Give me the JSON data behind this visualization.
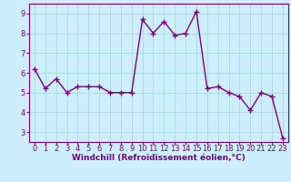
{
  "x": [
    0,
    1,
    2,
    3,
    4,
    5,
    6,
    7,
    8,
    9,
    10,
    11,
    12,
    13,
    14,
    15,
    16,
    17,
    18,
    19,
    20,
    21,
    22,
    23
  ],
  "y": [
    6.2,
    5.2,
    5.7,
    5.0,
    5.3,
    5.3,
    5.3,
    5.0,
    5.0,
    5.0,
    8.7,
    8.0,
    8.6,
    7.9,
    8.0,
    9.1,
    5.2,
    5.3,
    5.0,
    4.8,
    4.1,
    5.0,
    4.8,
    2.7
  ],
  "line_color": "#800080",
  "marker": "+",
  "marker_size": 5,
  "bg_color": "#cceeff",
  "grid_color": "#aadddd",
  "xlabel": "Windchill (Refroidissement éolien,°C)",
  "ylim": [
    2.5,
    9.5
  ],
  "xlim": [
    -0.5,
    23.5
  ],
  "yticks": [
    3,
    4,
    5,
    6,
    7,
    8,
    9
  ],
  "xticks": [
    0,
    1,
    2,
    3,
    4,
    5,
    6,
    7,
    8,
    9,
    10,
    11,
    12,
    13,
    14,
    15,
    16,
    17,
    18,
    19,
    20,
    21,
    22,
    23
  ],
  "xlabel_fontsize": 6.5,
  "tick_fontsize": 6,
  "line_width": 1.0,
  "marker_color": "#800080"
}
